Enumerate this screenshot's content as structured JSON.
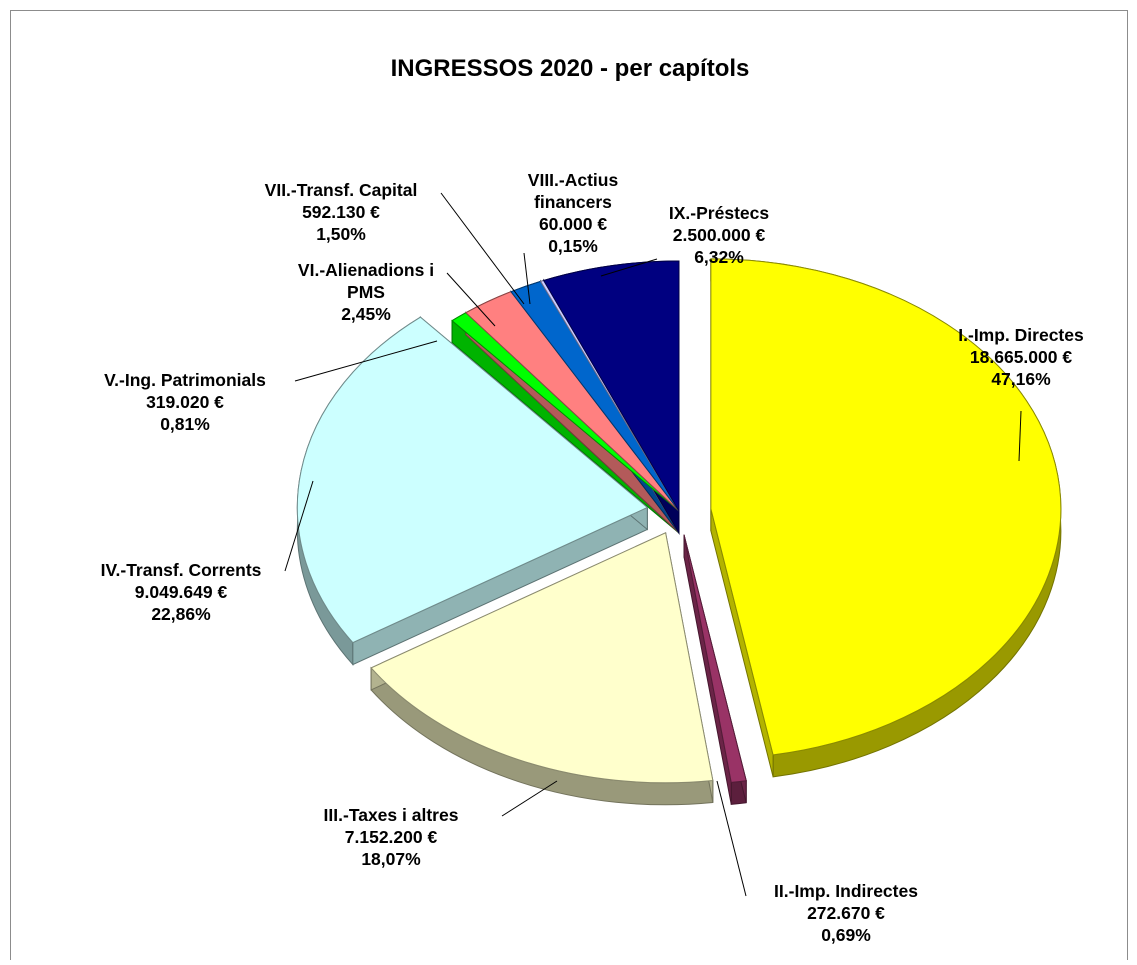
{
  "chart_data": {
    "type": "pie",
    "title": "INGRESSOS 2020 - per capítols",
    "slices": [
      {
        "name_lines": [
          "I.-Imp. Directes"
        ],
        "value_text": "18.665.000 €",
        "percent_text": "47,16%",
        "value": 18665000,
        "percent": 47.16,
        "color": "#ffff00"
      },
      {
        "name_lines": [
          "II.-Imp. Indirectes"
        ],
        "value_text": "272.670 €",
        "percent_text": "0,69%",
        "value": 272670,
        "percent": 0.69,
        "color": "#993366"
      },
      {
        "name_lines": [
          "III.-Taxes i altres"
        ],
        "value_text": "7.152.200 €",
        "percent_text": "18,07%",
        "value": 7152200,
        "percent": 18.07,
        "color": "#ffffcc"
      },
      {
        "name_lines": [
          "IV.-Transf. Corrents"
        ],
        "value_text": "9.049.649 €",
        "percent_text": "22,86%",
        "value": 9049649,
        "percent": 22.86,
        "color": "#ccffff"
      },
      {
        "name_lines": [
          "V.-Ing. Patrimonials"
        ],
        "value_text": "319.020 €",
        "percent_text": "0,81%",
        "value": 319020,
        "percent": 0.81,
        "color": "#00ff00"
      },
      {
        "name_lines": [
          "VI.-Alienadions i",
          "PMS"
        ],
        "value_text": "",
        "percent_text": "2,45%",
        "value": null,
        "percent": 2.45,
        "color": "#ff8080"
      },
      {
        "name_lines": [
          "VII.-Transf. Capital"
        ],
        "value_text": "592.130 €",
        "percent_text": "1,50%",
        "value": 592130,
        "percent": 1.5,
        "color": "#0066cc"
      },
      {
        "name_lines": [
          "VIII.-Actius",
          "financers"
        ],
        "value_text": "60.000 €",
        "percent_text": "0,15%",
        "value": 60000,
        "percent": 0.15,
        "color": "#ccccff"
      },
      {
        "name_lines": [
          "IX.-Préstecs"
        ],
        "value_text": "2.500.000 €",
        "percent_text": "6,32%",
        "value": 2500000,
        "percent": 6.32,
        "color": "#000080"
      }
    ],
    "legend": "none",
    "labels": "outside-with-leader-lines",
    "style": "3d-exploded"
  }
}
